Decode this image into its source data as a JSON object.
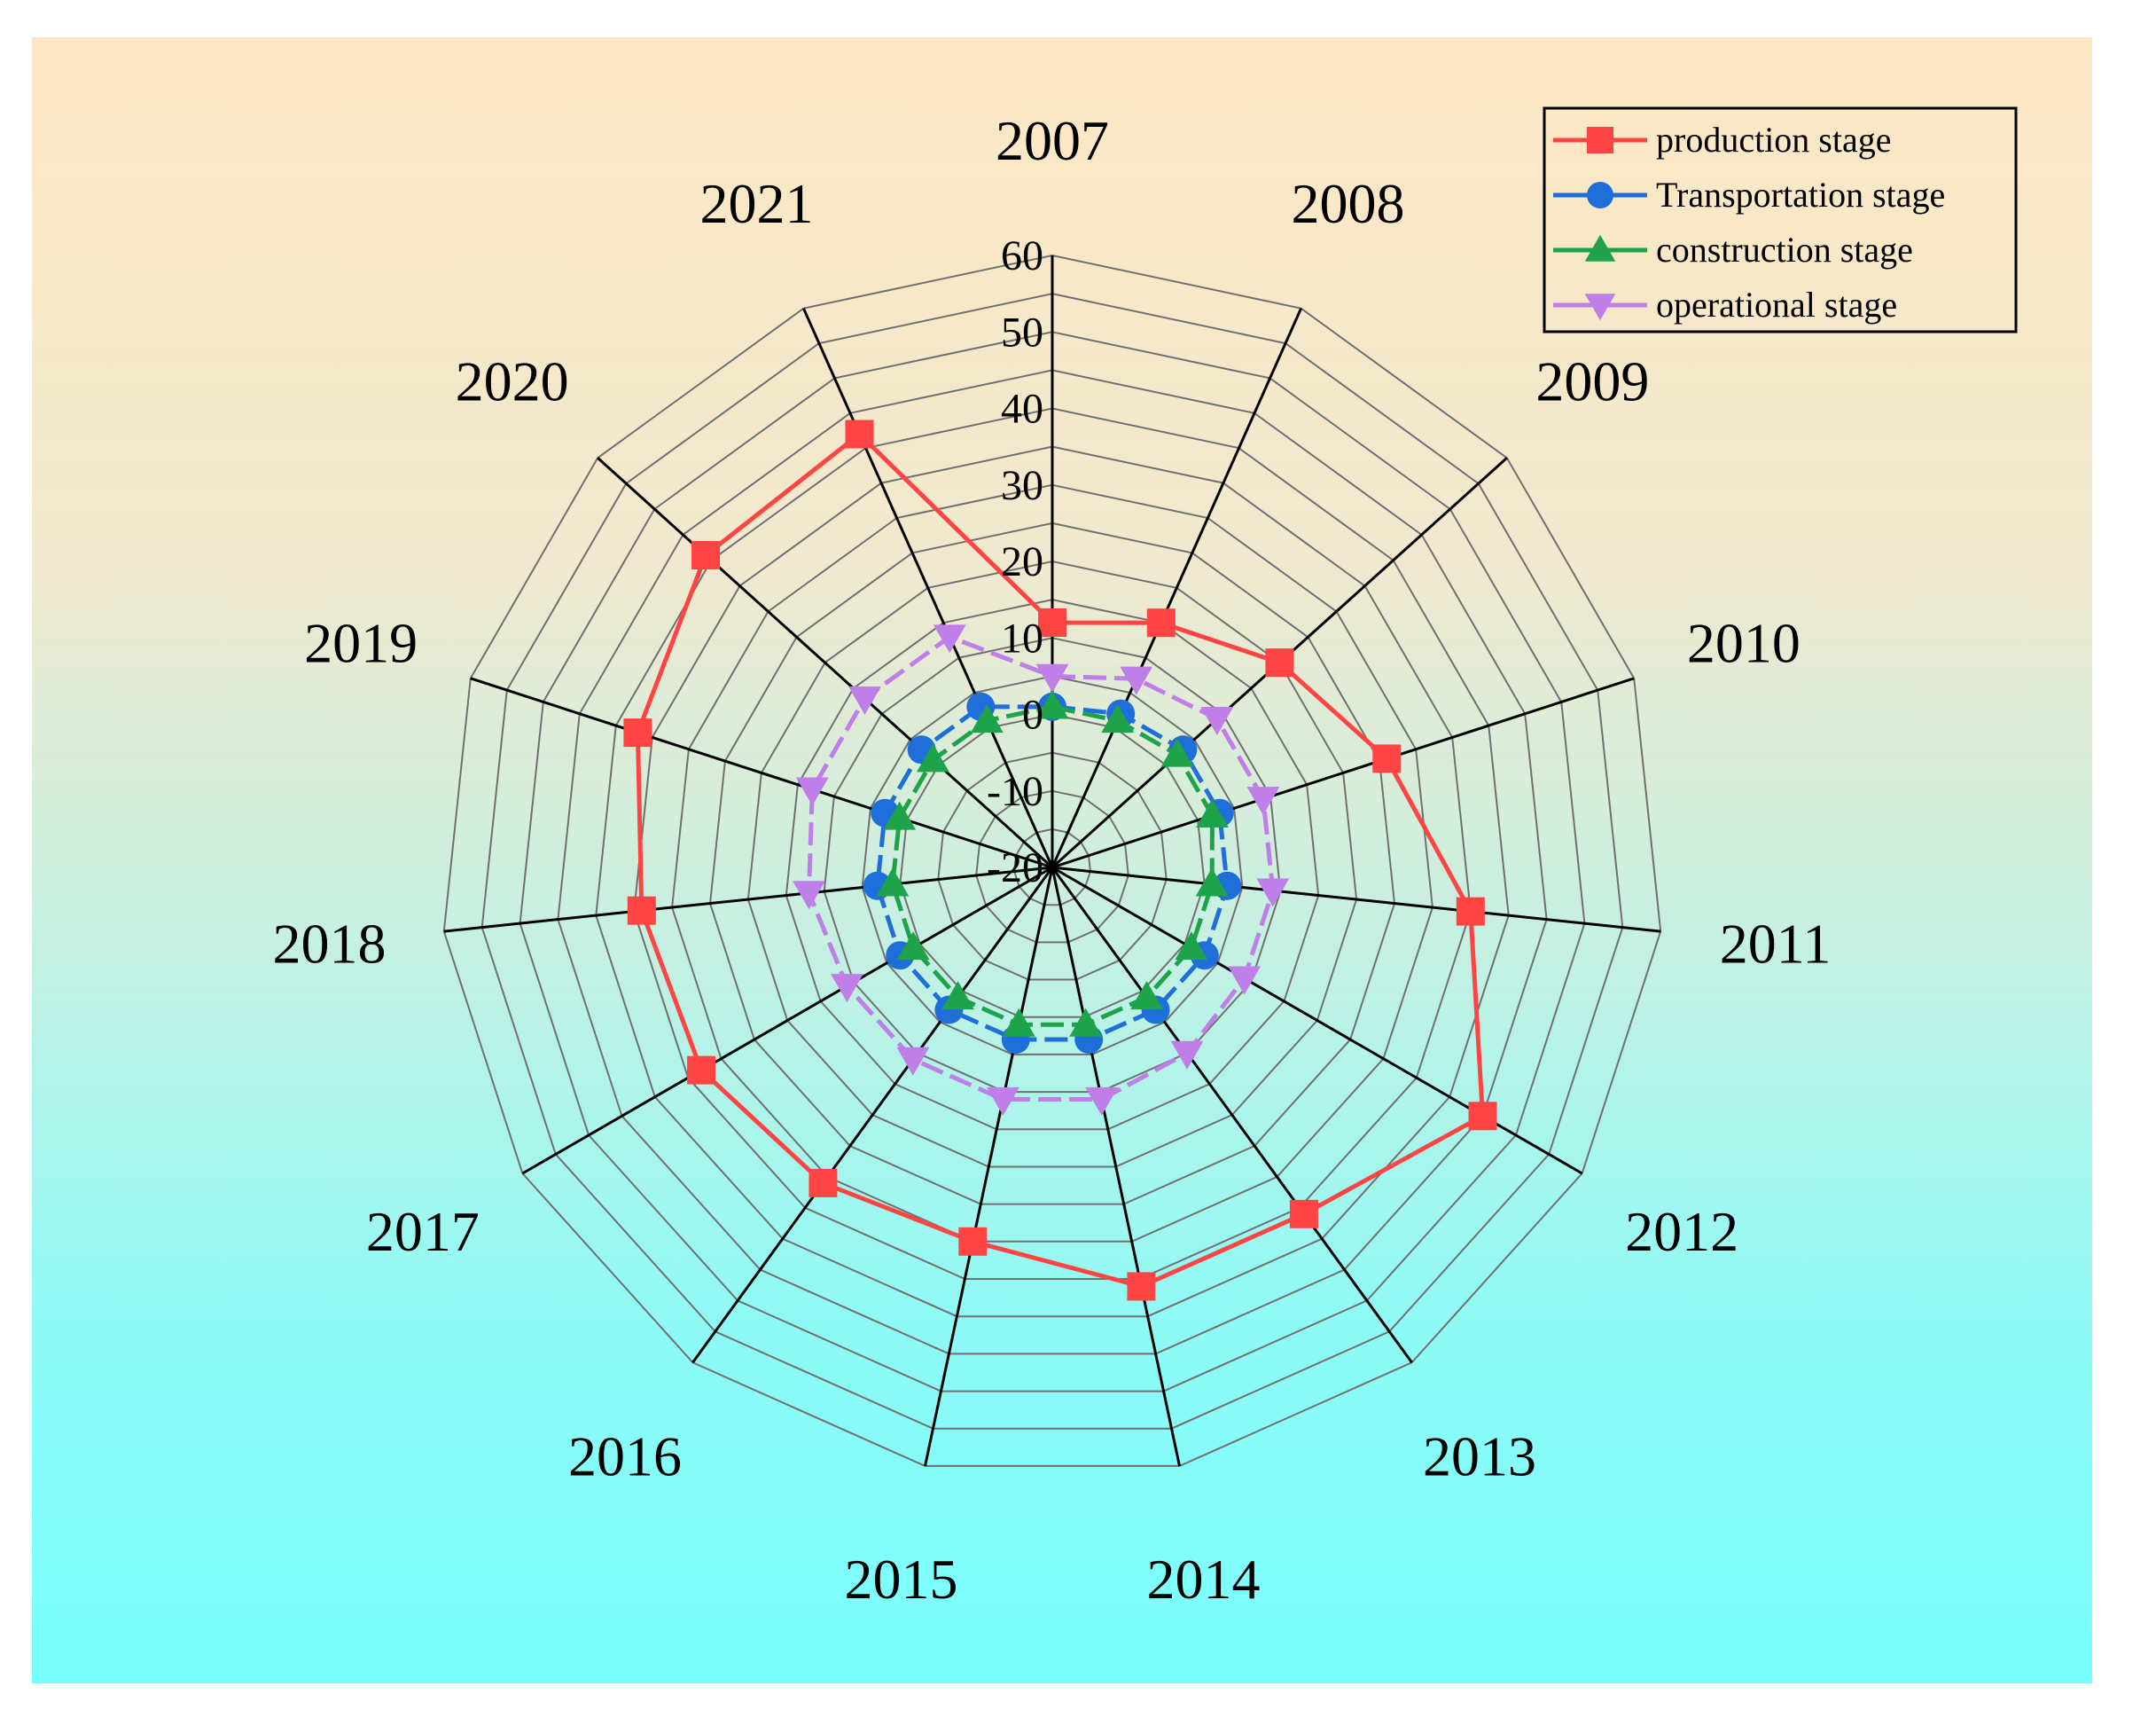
{
  "chart_data": {
    "type": "radar",
    "title": "",
    "categories": [
      "2007",
      "2008",
      "2009",
      "2010",
      "2011",
      "2012",
      "2013",
      "2014",
      "2015",
      "2016",
      "2017",
      "2018",
      "2019",
      "2020",
      "2021"
    ],
    "ticks": [
      "-20",
      "-10",
      "0",
      "10",
      "20",
      "30",
      "40",
      "50",
      "60"
    ],
    "range": [
      -20,
      60
    ],
    "grid": true,
    "legend_position": "top-right",
    "series": [
      {
        "name": "production stage",
        "color": "#ff4444",
        "marker": "square",
        "values": [
          12,
          15,
          20,
          26,
          35,
          45,
          36,
          36,
          30,
          31,
          33,
          34,
          37,
          41,
          42
        ]
      },
      {
        "name": "Transportation stage",
        "color": "#1e6fd9",
        "marker": "circle",
        "values": [
          1,
          2,
          3,
          3,
          3,
          3,
          3,
          3,
          3,
          3,
          3,
          3,
          3,
          3,
          3
        ]
      },
      {
        "name": "construction stage",
        "color": "#1fa34a",
        "marker": "triangle-up",
        "values": [
          1,
          1,
          2,
          2,
          1,
          1,
          1,
          1,
          1,
          1,
          1,
          1,
          1,
          1,
          1
        ]
      },
      {
        "name": "operational stage",
        "color": "#c07ee8",
        "marker": "triangle-down",
        "values": [
          5,
          7,
          9,
          9,
          9,
          9,
          10,
          11,
          11,
          11,
          11,
          12,
          13,
          13,
          13
        ]
      }
    ]
  }
}
